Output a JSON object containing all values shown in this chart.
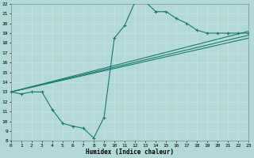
{
  "background_color": "#b2d8d8",
  "grid_color": "#d0e8e8",
  "line_color": "#1a7a6e",
  "xlabel": "Humidex (Indice chaleur)",
  "xlim": [
    0,
    23
  ],
  "ylim": [
    8,
    22
  ],
  "yticks": [
    8,
    9,
    10,
    11,
    12,
    13,
    14,
    15,
    16,
    17,
    18,
    19,
    20,
    21,
    22
  ],
  "xticks": [
    0,
    1,
    2,
    3,
    4,
    5,
    6,
    7,
    8,
    9,
    10,
    11,
    12,
    13,
    14,
    15,
    16,
    17,
    18,
    19,
    20,
    21,
    22,
    23
  ],
  "curve1_x": [
    0,
    1,
    2,
    3,
    4,
    5,
    6,
    7,
    8,
    9,
    10,
    11,
    12,
    13,
    14,
    15,
    16,
    17,
    18,
    19,
    20,
    21,
    22,
    23
  ],
  "curve1_y": [
    13.0,
    12.8,
    13.0,
    13.0,
    11.2,
    9.8,
    9.5,
    9.3,
    8.3,
    10.4,
    18.5,
    19.8,
    22.2,
    22.2,
    21.2,
    21.2,
    20.5,
    20.0,
    19.3,
    19.0,
    19.0,
    19.0,
    19.0,
    19.0
  ],
  "curve2_x": [
    0,
    23
  ],
  "curve2_y": [
    13.0,
    19.0
  ],
  "curve3_x": [
    0,
    23
  ],
  "curve3_y": [
    13.0,
    19.0
  ],
  "curve4_x": [
    0,
    23
  ],
  "curve4_y": [
    13.0,
    19.0
  ],
  "fan_lines": [
    {
      "x": [
        0,
        23
      ],
      "y": [
        13.0,
        19.2
      ]
    },
    {
      "x": [
        0,
        23
      ],
      "y": [
        13.0,
        18.8
      ]
    },
    {
      "x": [
        0,
        23
      ],
      "y": [
        13.0,
        18.5
      ]
    }
  ]
}
